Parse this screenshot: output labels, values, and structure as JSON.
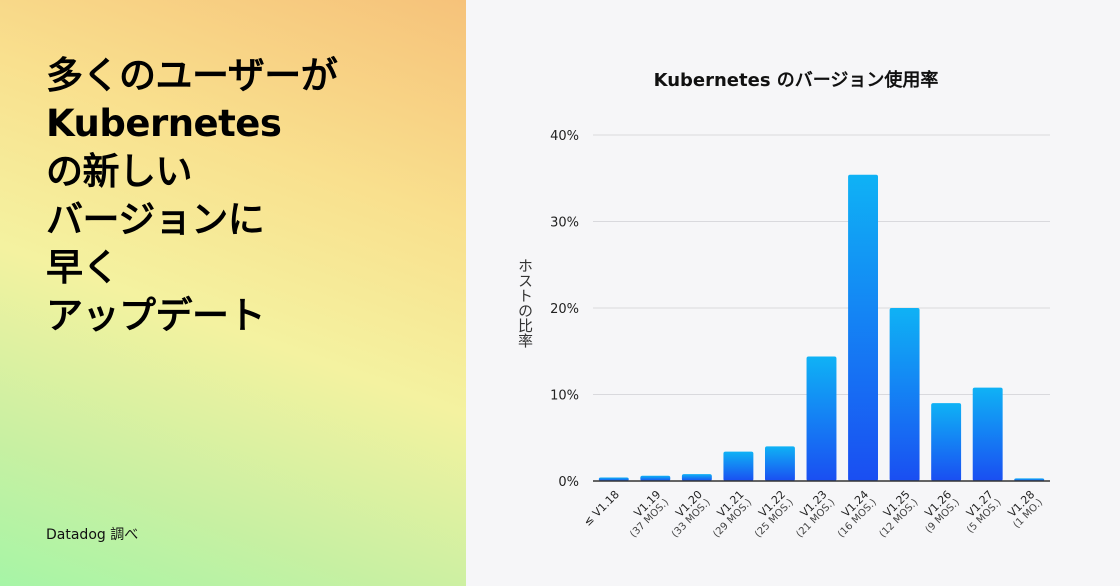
{
  "headline": {
    "lines": [
      "多くのユーザーが",
      "Kubernetes",
      "の新しい",
      "バージョンに",
      "早く",
      "アップデート"
    ]
  },
  "source": "Datadog 調べ",
  "colors": {
    "bar_top": "#0fb2f5",
    "bar_bottom": "#1a4ef2",
    "grid": "#d9d9dd",
    "axis": "#333333"
  },
  "chart_data": {
    "type": "bar",
    "title": "Kubernetes のバージョン使用率",
    "xlabel": "",
    "ylabel": "ホストの比率",
    "ylim": [
      0,
      40
    ],
    "yticks": [
      0,
      10,
      20,
      30,
      40
    ],
    "ytick_labels": [
      "0%",
      "10%",
      "20%",
      "30%",
      "40%"
    ],
    "grid": true,
    "categories": [
      {
        "label": "≤ V1.18",
        "sub": ""
      },
      {
        "label": "V1.19",
        "sub": "(37 MOS.)"
      },
      {
        "label": "V1.20",
        "sub": "(33 MOS.)"
      },
      {
        "label": "V1.21",
        "sub": "(29 MOS.)"
      },
      {
        "label": "V1.22",
        "sub": "(25 MOS.)"
      },
      {
        "label": "V1.23",
        "sub": "(21 MOS.)"
      },
      {
        "label": "V1.24",
        "sub": "(16 MOS.)"
      },
      {
        "label": "V1.25",
        "sub": "(12 MOS.)"
      },
      {
        "label": "V1.26",
        "sub": "(9 MOS.)"
      },
      {
        "label": "V1.27",
        "sub": "(5 MOS.)"
      },
      {
        "label": "V1.28",
        "sub": "(1 MO.)"
      }
    ],
    "values": [
      0.4,
      0.6,
      0.8,
      3.4,
      4.0,
      14.4,
      35.4,
      20.0,
      9.0,
      10.8,
      0.3
    ]
  }
}
